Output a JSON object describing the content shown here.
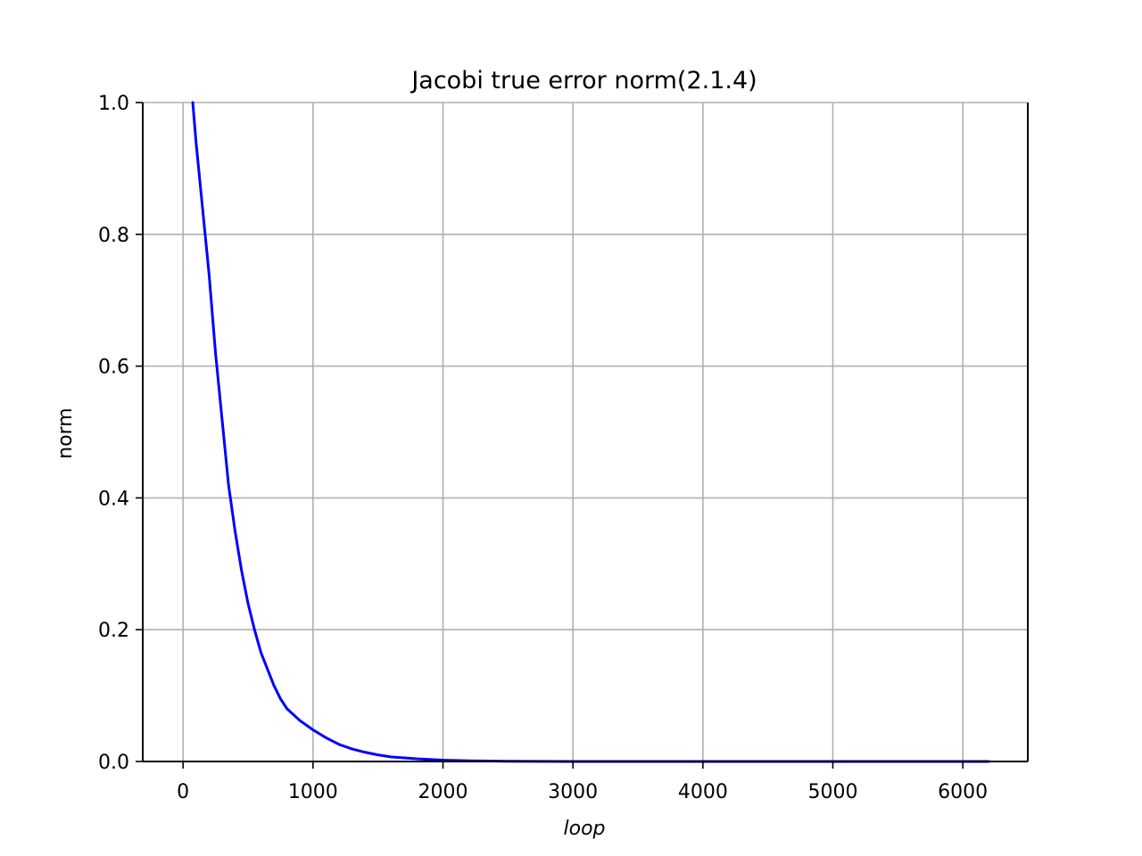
{
  "chart_data": {
    "type": "line",
    "title": "Jacobi true error norm(2.1.4)",
    "xlabel": "loop",
    "ylabel": "norm",
    "xlim": [
      -310,
      6500
    ],
    "ylim": [
      0.0,
      1.0
    ],
    "xticks": [
      0,
      1000,
      2000,
      3000,
      4000,
      5000,
      6000
    ],
    "xtick_labels": [
      "0",
      "1000",
      "2000",
      "3000",
      "4000",
      "5000",
      "6000"
    ],
    "yticks": [
      0.0,
      0.2,
      0.4,
      0.6,
      0.8,
      1.0
    ],
    "ytick_labels": [
      "0.0",
      "0.2",
      "0.4",
      "0.6",
      "0.8",
      "1.0"
    ],
    "grid": true,
    "series": [
      {
        "color": "#0000ff",
        "x": [
          75,
          100,
          150,
          200,
          250,
          300,
          350,
          400,
          450,
          500,
          550,
          600,
          650,
          700,
          750,
          800,
          900,
          1000,
          1100,
          1200,
          1300,
          1400,
          1500,
          1600,
          1800,
          2000,
          2200,
          2500,
          3000,
          3500,
          4000,
          4500,
          5000,
          5500,
          6000,
          6200
        ],
        "values": [
          1.0,
          0.94,
          0.84,
          0.74,
          0.62,
          0.52,
          0.42,
          0.35,
          0.29,
          0.24,
          0.2,
          0.165,
          0.14,
          0.115,
          0.095,
          0.08,
          0.062,
          0.048,
          0.036,
          0.026,
          0.019,
          0.014,
          0.01,
          0.007,
          0.004,
          0.002,
          0.001,
          0.0003,
          0.0,
          0.0,
          0.0,
          0.0,
          0.0,
          0.0,
          0.0,
          0.0
        ]
      }
    ]
  }
}
